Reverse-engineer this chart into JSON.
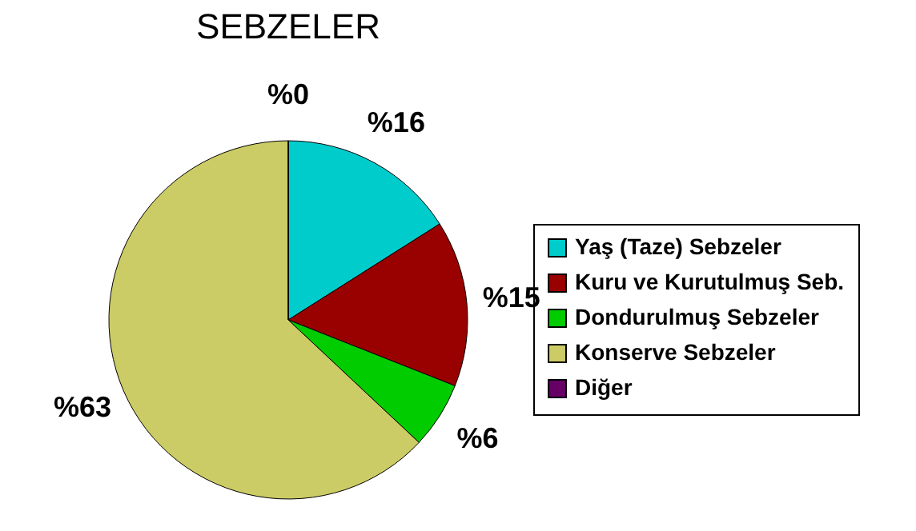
{
  "chart_data": {
    "type": "pie",
    "title": "SEBZELER",
    "categories": [
      "Yaş (Taze) Sebzeler",
      "Kuru ve Kurutulmuş Seb.",
      "Dondurulmuş Sebzeler",
      "Konserve Sebzeler",
      "Diğer"
    ],
    "values": [
      16,
      15,
      6,
      63,
      0
    ],
    "colors": [
      "#00cccc",
      "#990000",
      "#00cc00",
      "#cccc66",
      "#660066"
    ],
    "value_labels": [
      "%16",
      "%15",
      "%6",
      "%63",
      "%0"
    ],
    "legend": "right"
  }
}
